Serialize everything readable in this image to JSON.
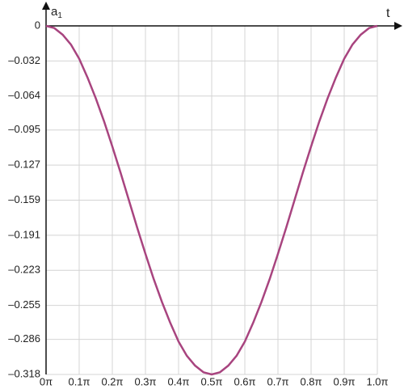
{
  "chart_data": {
    "type": "line",
    "x_label": "t",
    "y_label": "a",
    "y_label_sub": "1",
    "x": [
      0,
      0.025,
      0.05,
      0.075,
      0.1,
      0.125,
      0.15,
      0.175,
      0.2,
      0.225,
      0.25,
      0.275,
      0.3,
      0.325,
      0.35,
      0.375,
      0.4,
      0.425,
      0.45,
      0.475,
      0.5,
      0.525,
      0.55,
      0.575,
      0.6,
      0.625,
      0.65,
      0.675,
      0.7,
      0.725,
      0.75,
      0.775,
      0.8,
      0.825,
      0.85,
      0.875,
      0.9,
      0.925,
      0.95,
      0.975,
      1.0
    ],
    "series": [
      {
        "color": "#a8447f",
        "values": [
          0,
          -0.002,
          -0.008,
          -0.017,
          -0.03,
          -0.047,
          -0.066,
          -0.087,
          -0.11,
          -0.134,
          -0.159,
          -0.184,
          -0.208,
          -0.231,
          -0.252,
          -0.271,
          -0.288,
          -0.301,
          -0.31,
          -0.316,
          -0.318,
          -0.316,
          -0.31,
          -0.301,
          -0.288,
          -0.271,
          -0.252,
          -0.231,
          -0.208,
          -0.184,
          -0.159,
          -0.134,
          -0.11,
          -0.087,
          -0.066,
          -0.047,
          -0.03,
          -0.017,
          -0.008,
          -0.002,
          0
        ]
      }
    ],
    "xlim": [
      0,
      1.0
    ],
    "ylim": [
      -0.318,
      0
    ],
    "xticks": [
      {
        "value": 0,
        "label": "0π"
      },
      {
        "value": 0.1,
        "label": "0.1π"
      },
      {
        "value": 0.2,
        "label": "0.2π"
      },
      {
        "value": 0.3,
        "label": "0.3π"
      },
      {
        "value": 0.4,
        "label": "0.4π"
      },
      {
        "value": 0.5,
        "label": "0.5π"
      },
      {
        "value": 0.6,
        "label": "0.6π"
      },
      {
        "value": 0.7,
        "label": "0.7π"
      },
      {
        "value": 0.8,
        "label": "0.8π"
      },
      {
        "value": 0.9,
        "label": "0.9π"
      },
      {
        "value": 1.0,
        "label": "1.0π"
      }
    ],
    "yticks": [
      0,
      {
        "value": -0.032,
        "label": "–0.032"
      },
      {
        "value": -0.064,
        "label": "–0.064"
      },
      {
        "value": -0.095,
        "label": "–0.095"
      },
      {
        "value": -0.127,
        "label": "–0.127"
      },
      {
        "value": -0.159,
        "label": "–0.159"
      },
      {
        "value": -0.191,
        "label": "–0.191"
      },
      {
        "value": -0.223,
        "label": "–0.223"
      },
      {
        "value": -0.255,
        "label": "–0.255"
      },
      {
        "value": -0.286,
        "label": "–0.286"
      },
      {
        "value": -0.318,
        "label": "–0.318"
      }
    ],
    "grid": true
  }
}
